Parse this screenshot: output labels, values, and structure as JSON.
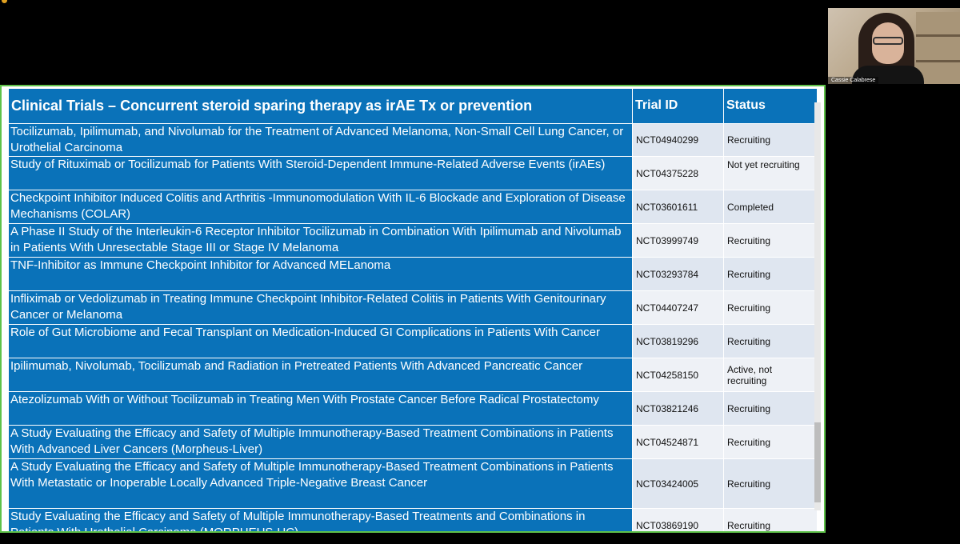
{
  "video": {
    "participant_name": "Cassie Calabrese"
  },
  "slide": {
    "header": {
      "title": "Clinical Trials – Concurrent steroid sparing therapy as irAE Tx or prevention",
      "trial_id_label": "Trial ID",
      "status_label": "Status"
    },
    "rows": [
      {
        "description": "Tocilizumab, Ipilimumab, and Nivolumab for the Treatment of Advanced Melanoma, Non-Small Cell Lung Cancer, or Urothelial Carcinoma",
        "trial_id": "NCT04940299",
        "status": "Recruiting"
      },
      {
        "description": "Study of Rituximab or Tocilizumab for Patients With Steroid-Dependent Immune-Related Adverse Events (irAEs)",
        "trial_id": "NCT04375228",
        "status": "Not yet recruiting"
      },
      {
        "description": "Checkpoint Inhibitor Induced Colitis and Arthritis -Immunomodulation With IL-6 Blockade and Exploration of Disease Mechanisms (COLAR)",
        "trial_id": "NCT03601611",
        "status": "Completed"
      },
      {
        "description": "A Phase II Study of the Interleukin-6 Receptor Inhibitor Tocilizumab in Combination With Ipilimumab and Nivolumab in Patients With Unresectable Stage III or Stage IV Melanoma",
        "trial_id": "NCT03999749",
        "status": "Recruiting"
      },
      {
        "description": "TNF-Inhibitor as Immune Checkpoint Inhibitor for Advanced MELanoma",
        "trial_id": "NCT03293784",
        "status": "Recruiting"
      },
      {
        "description": "Infliximab or Vedolizumab in Treating Immune Checkpoint Inhibitor-Related Colitis in Patients With Genitourinary Cancer or Melanoma",
        "trial_id": "NCT04407247",
        "status": "Recruiting"
      },
      {
        "description": "Role of Gut Microbiome and Fecal Transplant on Medication-Induced GI Complications in Patients With Cancer",
        "trial_id": "NCT03819296",
        "status": "Recruiting"
      },
      {
        "description": "Ipilimumab, Nivolumab, Tocilizumab and Radiation in Pretreated Patients With Advanced Pancreatic Cancer",
        "trial_id": "NCT04258150",
        "status": "Active, not recruiting"
      },
      {
        "description": "Atezolizumab With or Without Tocilizumab in Treating Men With Prostate Cancer Before Radical Prostatectomy",
        "trial_id": "NCT03821246",
        "status": "Recruiting"
      },
      {
        "description": "A Study Evaluating the Efficacy and Safety of Multiple Immunotherapy-Based Treatment Combinations in Patients With Advanced Liver Cancers (Morpheus-Liver)",
        "trial_id": "NCT04524871",
        "status": "Recruiting"
      },
      {
        "description": "A Study Evaluating the Efficacy and Safety of Multiple Immunotherapy-Based Treatment Combinations in Patients With Metastatic or Inoperable Locally Advanced Triple-Negative Breast Cancer",
        "trial_id": "NCT03424005",
        "status": "Recruiting"
      },
      {
        "description": "Study Evaluating the Efficacy and Safety of Multiple Immunotherapy-Based Treatments and Combinations in Patients With Urothelial Carcinoma (MORPHEUS-UC)",
        "trial_id": "NCT03869190",
        "status": "Recruiting"
      }
    ]
  }
}
